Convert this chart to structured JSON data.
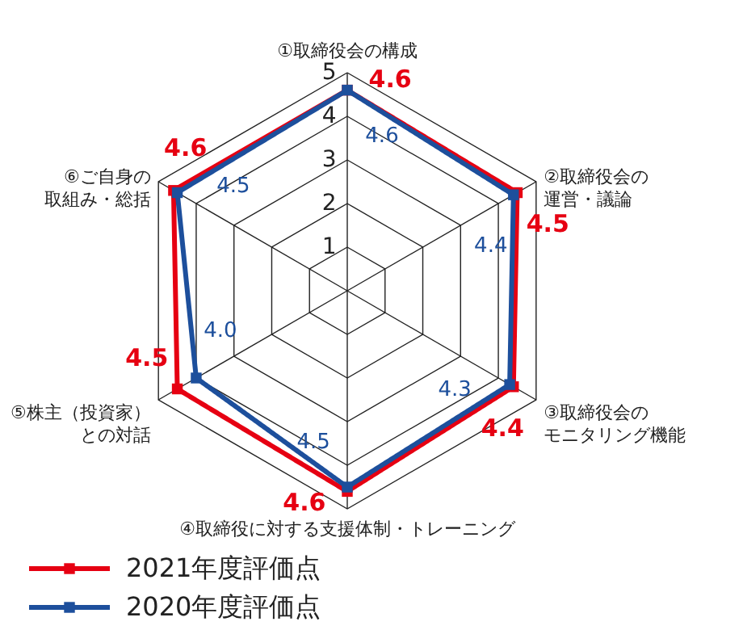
{
  "chart_data": {
    "type": "radar",
    "categories": [
      "①取締役会の構成",
      "②取締役会の運営・議論",
      "③取締役会のモニタリング機能",
      "④取締役に対する支援体制・トレーニング",
      "⑤株主（投資家）との対話",
      "⑥ご自身の取組み・総括"
    ],
    "series": [
      {
        "name": "2021年度評価点",
        "color": "#e60012",
        "values": [
          4.6,
          4.5,
          4.4,
          4.6,
          4.5,
          4.6
        ],
        "value_labels": [
          "4.6",
          "4.5",
          "4.4",
          "4.6",
          "4.5",
          "4.6"
        ]
      },
      {
        "name": "2020年度評価点",
        "color": "#1d4f9c",
        "values": [
          4.6,
          4.4,
          4.3,
          4.5,
          4.0,
          4.5
        ],
        "value_labels": [
          "4.6",
          "4.4",
          "4.3",
          "4.5",
          "4.0",
          "4.5"
        ]
      }
    ],
    "ylim": [
      0,
      5
    ],
    "yticks": [
      1,
      2,
      3,
      4,
      5
    ],
    "grid": true,
    "legend": "bottom left",
    "marker": "square",
    "line_style": "solid"
  }
}
